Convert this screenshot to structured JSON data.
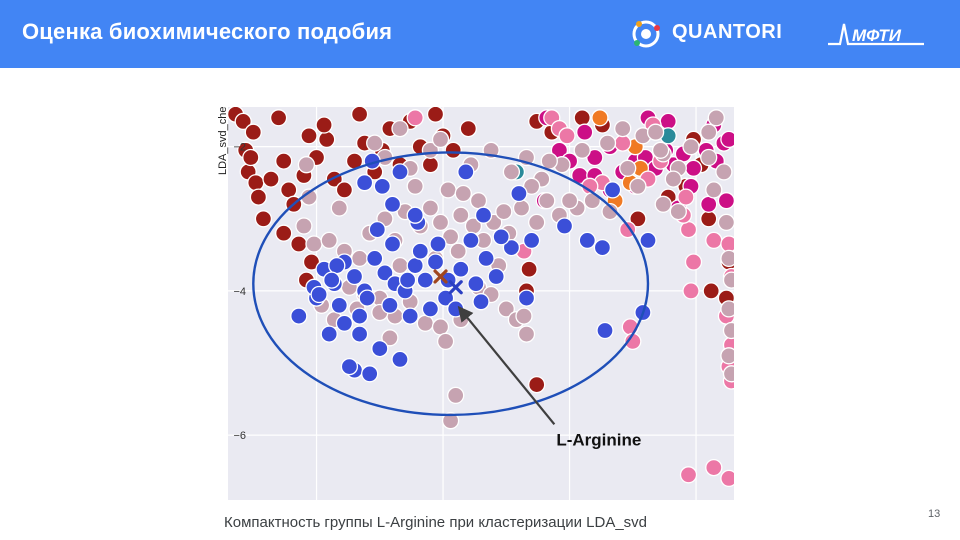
{
  "slide": {
    "title": "Оценка биохимического подобия",
    "caption": "Компактность группы L-Arginine при кластеризации LDA_svd",
    "page_number": "13"
  },
  "logos": {
    "company": "QUANTORI",
    "institute": "МФТИ"
  },
  "colors": {
    "header": "#4285f4",
    "blue": "#3b4fd8",
    "mauve": "#c6a3b1",
    "darkred": "#9b1c17",
    "magenta": "#cc0f86",
    "pink": "#ec77a6",
    "orange": "#f07a24",
    "teal": "#2a8a9a",
    "ellipse": "#1f4fb8",
    "plot_bg": "#eaeaf2"
  },
  "chart_data": {
    "type": "scatter",
    "ylabel": "LDA_svd_che",
    "yticks": [
      -2,
      -4,
      -6
    ],
    "ylim": [
      -6.9,
      -1.45
    ],
    "xlim": [
      0,
      10
    ],
    "annotation": {
      "text": "L-Arginine",
      "point": [
        4.5,
        -4.2
      ]
    },
    "highlight_marks": [
      {
        "name": "x-marker-brown",
        "x": 4.2,
        "y": -3.8,
        "color": "#a0461f"
      },
      {
        "name": "x-marker-blue",
        "x": 4.5,
        "y": -3.95,
        "color": "#2b3fc2"
      }
    ],
    "cluster_ellipse": {
      "cx": 4.4,
      "cy": -3.9,
      "rx": 3.9,
      "ry": 1.82
    },
    "series": [
      {
        "group": "blue",
        "points": [
          [
            1.75,
            -4.1
          ],
          [
            1.9,
            -3.7
          ],
          [
            2.1,
            -3.9
          ],
          [
            2.2,
            -4.2
          ],
          [
            1.7,
            -3.95
          ],
          [
            2.3,
            -3.6
          ],
          [
            2.5,
            -3.8
          ],
          [
            2.7,
            -4.0
          ],
          [
            2.9,
            -3.55
          ],
          [
            3.1,
            -3.75
          ],
          [
            3.3,
            -3.9
          ],
          [
            3.5,
            -4.0
          ],
          [
            3.7,
            -3.65
          ],
          [
            3.9,
            -3.85
          ],
          [
            4.1,
            -3.6
          ],
          [
            4.3,
            -4.1
          ],
          [
            4.6,
            -3.7
          ],
          [
            4.9,
            -3.9
          ],
          [
            5.1,
            -3.55
          ],
          [
            5.3,
            -3.8
          ],
          [
            5.6,
            -3.4
          ],
          [
            6.0,
            -3.3
          ],
          [
            5.9,
            -4.1
          ],
          [
            7.6,
            -2.6
          ],
          [
            7.4,
            -3.4
          ],
          [
            8.3,
            -3.3
          ],
          [
            8.2,
            -4.3
          ],
          [
            7.45,
            -4.55
          ],
          [
            2.0,
            -4.6
          ],
          [
            2.6,
            -4.35
          ],
          [
            3.0,
            -4.8
          ],
          [
            3.4,
            -4.95
          ],
          [
            2.5,
            -5.1
          ],
          [
            2.8,
            -5.15
          ],
          [
            2.4,
            -5.05
          ],
          [
            2.6,
            -4.6
          ],
          [
            3.2,
            -4.2
          ],
          [
            3.6,
            -4.35
          ],
          [
            4.0,
            -4.25
          ],
          [
            4.5,
            -4.25
          ],
          [
            4.8,
            -3.3
          ],
          [
            5.0,
            -4.15
          ],
          [
            5.4,
            -3.25
          ],
          [
            1.4,
            -4.35
          ],
          [
            1.8,
            -4.05
          ],
          [
            2.15,
            -3.65
          ],
          [
            3.25,
            -3.35
          ],
          [
            4.15,
            -3.35
          ],
          [
            3.8,
            -3.45
          ],
          [
            2.3,
            -4.45
          ],
          [
            2.75,
            -4.1
          ],
          [
            2.05,
            -3.85
          ],
          [
            3.55,
            -3.85
          ],
          [
            4.35,
            -3.85
          ],
          [
            3.05,
            -2.55
          ],
          [
            2.7,
            -2.5
          ],
          [
            2.85,
            -2.2
          ],
          [
            3.25,
            -2.8
          ],
          [
            3.4,
            -2.35
          ],
          [
            5.05,
            -2.95
          ],
          [
            4.7,
            -2.35
          ],
          [
            3.75,
            -3.05
          ],
          [
            3.7,
            -2.95
          ],
          [
            2.95,
            -3.15
          ],
          [
            6.65,
            -3.1
          ],
          [
            7.1,
            -3.3
          ],
          [
            5.75,
            -2.65
          ]
        ]
      },
      {
        "group": "mauve",
        "points": [
          [
            1.5,
            -3.1
          ],
          [
            1.7,
            -3.35
          ],
          [
            2.0,
            -3.3
          ],
          [
            2.3,
            -3.45
          ],
          [
            2.6,
            -3.55
          ],
          [
            2.8,
            -3.2
          ],
          [
            3.1,
            -3.0
          ],
          [
            3.3,
            -3.3
          ],
          [
            3.5,
            -2.9
          ],
          [
            3.8,
            -3.1
          ],
          [
            4.0,
            -2.85
          ],
          [
            4.2,
            -3.05
          ],
          [
            4.4,
            -3.25
          ],
          [
            4.6,
            -2.95
          ],
          [
            4.85,
            -3.1
          ],
          [
            5.05,
            -3.3
          ],
          [
            5.25,
            -3.05
          ],
          [
            5.55,
            -3.2
          ],
          [
            5.8,
            -2.85
          ],
          [
            6.1,
            -3.05
          ],
          [
            6.3,
            -2.75
          ],
          [
            6.55,
            -2.95
          ],
          [
            6.9,
            -2.85
          ],
          [
            7.2,
            -2.75
          ],
          [
            7.55,
            -2.9
          ],
          [
            8.1,
            -2.55
          ],
          [
            8.6,
            -2.8
          ],
          [
            8.9,
            -2.9
          ],
          [
            2.4,
            -3.95
          ],
          [
            2.7,
            -4.05
          ],
          [
            3.0,
            -4.1
          ],
          [
            3.3,
            -4.35
          ],
          [
            3.6,
            -4.15
          ],
          [
            3.9,
            -4.45
          ],
          [
            4.2,
            -4.5
          ],
          [
            4.6,
            -4.4
          ],
          [
            4.95,
            -3.95
          ],
          [
            5.2,
            -4.05
          ],
          [
            5.5,
            -4.25
          ],
          [
            5.7,
            -4.4
          ],
          [
            5.85,
            -4.35
          ],
          [
            5.9,
            -4.6
          ],
          [
            4.3,
            -4.7
          ],
          [
            4.4,
            -5.8
          ],
          [
            4.5,
            -5.45
          ],
          [
            3.0,
            -4.3
          ],
          [
            2.1,
            -4.4
          ],
          [
            1.85,
            -4.2
          ],
          [
            2.55,
            -4.25
          ],
          [
            3.2,
            -4.65
          ],
          [
            3.4,
            -3.65
          ],
          [
            4.1,
            -3.55
          ],
          [
            4.55,
            -3.45
          ],
          [
            5.35,
            -3.65
          ],
          [
            3.1,
            -2.15
          ],
          [
            3.6,
            -2.3
          ],
          [
            4.0,
            -2.05
          ],
          [
            4.2,
            -1.9
          ],
          [
            4.8,
            -2.25
          ],
          [
            5.2,
            -2.05
          ],
          [
            5.6,
            -2.35
          ],
          [
            5.9,
            -2.15
          ],
          [
            6.2,
            -2.45
          ],
          [
            6.6,
            -2.25
          ],
          [
            7.0,
            -2.05
          ],
          [
            7.5,
            -1.95
          ],
          [
            7.8,
            -1.75
          ],
          [
            8.2,
            -1.85
          ],
          [
            8.6,
            -2.1
          ],
          [
            8.9,
            -2.3
          ],
          [
            9.15,
            -2.0
          ],
          [
            9.5,
            -2.15
          ],
          [
            9.8,
            -2.35
          ],
          [
            9.6,
            -2.6
          ],
          [
            8.8,
            -2.45
          ],
          [
            1.6,
            -2.7
          ],
          [
            2.9,
            -1.95
          ],
          [
            3.4,
            -1.75
          ],
          [
            9.65,
            -1.6
          ],
          [
            9.85,
            -3.05
          ],
          [
            9.9,
            -3.55
          ],
          [
            9.95,
            -3.85
          ],
          [
            9.9,
            -4.25
          ],
          [
            9.95,
            -4.55
          ],
          [
            9.9,
            -4.9
          ],
          [
            9.95,
            -5.15
          ],
          [
            9.5,
            -1.8
          ],
          [
            4.35,
            -2.6
          ],
          [
            4.65,
            -2.65
          ],
          [
            5.45,
            -2.9
          ],
          [
            6.0,
            -2.55
          ],
          [
            6.75,
            -2.75
          ],
          [
            7.9,
            -2.3
          ],
          [
            8.45,
            -1.8
          ],
          [
            8.55,
            -2.05
          ],
          [
            1.55,
            -2.25
          ],
          [
            4.95,
            -2.75
          ],
          [
            3.7,
            -2.55
          ],
          [
            2.2,
            -2.85
          ],
          [
            6.35,
            -2.2
          ]
        ]
      },
      {
        "group": "darkred",
        "points": [
          [
            0.15,
            -1.55
          ],
          [
            0.3,
            -1.65
          ],
          [
            0.4,
            -2.35
          ],
          [
            0.35,
            -2.05
          ],
          [
            0.45,
            -2.15
          ],
          [
            0.5,
            -1.8
          ],
          [
            0.55,
            -2.5
          ],
          [
            0.6,
            -2.7
          ],
          [
            0.7,
            -3.0
          ],
          [
            0.85,
            -2.45
          ],
          [
            1.0,
            -1.6
          ],
          [
            1.1,
            -2.2
          ],
          [
            1.2,
            -2.6
          ],
          [
            1.3,
            -2.8
          ],
          [
            1.5,
            -2.4
          ],
          [
            1.6,
            -1.85
          ],
          [
            1.75,
            -2.15
          ],
          [
            1.95,
            -1.9
          ],
          [
            2.1,
            -2.45
          ],
          [
            2.3,
            -2.6
          ],
          [
            2.5,
            -2.2
          ],
          [
            2.7,
            -1.95
          ],
          [
            2.9,
            -2.35
          ],
          [
            3.05,
            -2.05
          ],
          [
            3.2,
            -1.75
          ],
          [
            3.4,
            -2.25
          ],
          [
            3.6,
            -1.65
          ],
          [
            3.8,
            -2.0
          ],
          [
            4.0,
            -2.25
          ],
          [
            4.25,
            -1.85
          ],
          [
            4.45,
            -2.05
          ],
          [
            4.75,
            -1.75
          ],
          [
            1.4,
            -3.35
          ],
          [
            1.65,
            -3.6
          ],
          [
            1.55,
            -3.85
          ],
          [
            1.1,
            -3.2
          ],
          [
            5.95,
            -3.7
          ],
          [
            5.9,
            -4.0
          ],
          [
            6.1,
            -5.3
          ],
          [
            9.05,
            -2.55
          ],
          [
            9.5,
            -3.0
          ],
          [
            9.9,
            -3.6
          ],
          [
            9.85,
            -4.1
          ],
          [
            9.55,
            -4.0
          ],
          [
            9.2,
            -1.9
          ],
          [
            6.1,
            -1.65
          ],
          [
            6.4,
            -1.8
          ],
          [
            7.0,
            -1.6
          ],
          [
            7.4,
            -1.7
          ],
          [
            8.1,
            -3.0
          ],
          [
            8.7,
            -2.7
          ],
          [
            9.35,
            -2.25
          ],
          [
            4.1,
            -1.55
          ],
          [
            2.6,
            -1.55
          ],
          [
            1.9,
            -1.7
          ]
        ]
      },
      {
        "group": "magenta",
        "points": [
          [
            6.3,
            -1.6
          ],
          [
            6.55,
            -2.05
          ],
          [
            6.75,
            -2.2
          ],
          [
            6.95,
            -2.4
          ],
          [
            7.25,
            -2.15
          ],
          [
            7.55,
            -2.0
          ],
          [
            7.8,
            -2.35
          ],
          [
            8.05,
            -2.2
          ],
          [
            8.25,
            -2.15
          ],
          [
            8.45,
            -2.3
          ],
          [
            8.65,
            -2.05
          ],
          [
            8.8,
            -2.25
          ],
          [
            9.0,
            -2.1
          ],
          [
            9.2,
            -2.3
          ],
          [
            9.45,
            -2.05
          ],
          [
            9.65,
            -2.2
          ],
          [
            9.8,
            -1.95
          ],
          [
            9.9,
            -1.9
          ],
          [
            8.3,
            -1.6
          ],
          [
            8.7,
            -1.65
          ],
          [
            9.6,
            -1.7
          ],
          [
            7.25,
            -2.4
          ],
          [
            7.55,
            -2.6
          ],
          [
            8.05,
            -2.55
          ],
          [
            8.9,
            -2.85
          ],
          [
            9.15,
            -2.55
          ],
          [
            9.5,
            -2.8
          ],
          [
            9.85,
            -2.75
          ],
          [
            6.25,
            -2.75
          ],
          [
            7.05,
            -1.8
          ]
        ]
      },
      {
        "group": "pink",
        "points": [
          [
            6.4,
            -1.6
          ],
          [
            6.55,
            -1.75
          ],
          [
            6.7,
            -1.85
          ],
          [
            7.8,
            -1.95
          ],
          [
            8.4,
            -1.7
          ],
          [
            8.55,
            -2.2
          ],
          [
            9.05,
            -2.7
          ],
          [
            9.1,
            -3.15
          ],
          [
            9.2,
            -3.6
          ],
          [
            9.15,
            -4.0
          ],
          [
            9.0,
            -2.95
          ],
          [
            8.3,
            -2.45
          ],
          [
            7.4,
            -2.5
          ],
          [
            6.9,
            -2.85
          ],
          [
            7.15,
            -2.55
          ],
          [
            5.85,
            -3.45
          ],
          [
            7.9,
            -3.15
          ],
          [
            7.95,
            -4.5
          ],
          [
            8.0,
            -4.7
          ],
          [
            9.6,
            -3.3
          ],
          [
            9.9,
            -3.35
          ],
          [
            9.95,
            -3.8
          ],
          [
            9.85,
            -4.35
          ],
          [
            9.95,
            -4.75
          ],
          [
            9.9,
            -5.05
          ],
          [
            9.95,
            -5.25
          ],
          [
            9.9,
            -6.6
          ],
          [
            9.6,
            -6.45
          ],
          [
            9.1,
            -6.55
          ],
          [
            3.7,
            -1.6
          ]
        ]
      },
      {
        "group": "orange",
        "points": [
          [
            8.05,
            -2.0
          ],
          [
            8.15,
            -2.3
          ],
          [
            7.65,
            -2.75
          ],
          [
            7.95,
            -2.5
          ],
          [
            7.35,
            -1.6
          ]
        ]
      },
      {
        "group": "teal",
        "points": [
          [
            8.7,
            -1.85
          ],
          [
            5.7,
            -2.35
          ]
        ]
      }
    ]
  }
}
